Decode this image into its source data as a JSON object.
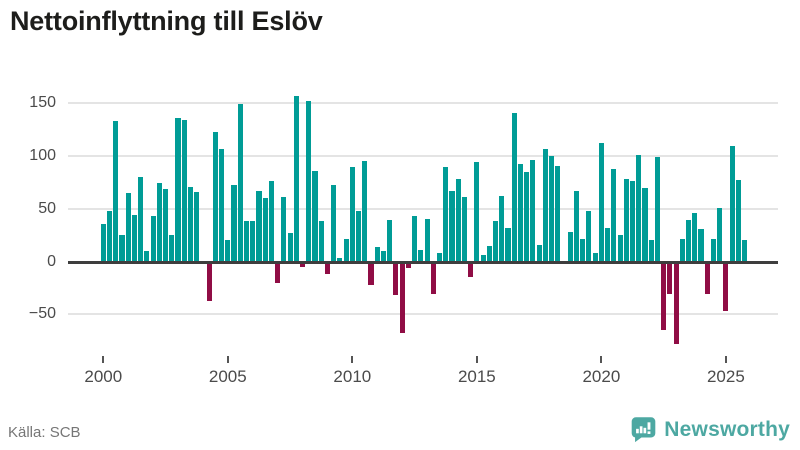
{
  "title": "Nettoinflyttning till Eslöv",
  "source": {
    "label": "Källa: SCB"
  },
  "brand": {
    "name": "Newsworthy",
    "icon": "bar-chart-speech-bubble-icon"
  },
  "colors": {
    "positive_bar": "#009c96",
    "negative_bar": "#900d45",
    "gridline": "#e4e4e4",
    "zero_axis": "#3e3e3e",
    "title_text": "#1d1d1b",
    "tick_text": "#4b4b4b",
    "source_text": "#767676",
    "brand_teal": "#4da8a2"
  },
  "chart_data": {
    "type": "bar",
    "title": "Nettoinflyttning till Eslöv",
    "xlabel": "",
    "ylabel": "",
    "start_period": "2000-Q1",
    "periods_per_year": 4,
    "values": [
      36,
      48,
      133,
      25,
      65,
      44,
      80,
      10,
      43,
      74,
      69,
      25,
      136,
      134,
      71,
      66,
      0,
      -37,
      123,
      107,
      20,
      73,
      149,
      38,
      38,
      67,
      60,
      76,
      -20,
      61,
      27,
      157,
      -5,
      152,
      86,
      38,
      -12,
      73,
      3,
      21,
      90,
      48,
      95,
      -22,
      14,
      10,
      39,
      -32,
      -68,
      -6,
      43,
      11,
      40,
      -31,
      8,
      90,
      67,
      78,
      61,
      -15,
      94,
      6,
      15,
      38,
      62,
      32,
      141,
      92,
      85,
      96,
      16,
      107,
      100,
      91,
      0,
      28,
      67,
      21,
      48,
      8,
      112,
      32,
      88,
      25,
      78,
      76,
      101,
      70,
      20,
      99,
      -65,
      -31,
      -78,
      21,
      39,
      46,
      31,
      -31,
      21,
      51,
      -47,
      110,
      77,
      20
    ],
    "x_ticks": [
      "2000",
      "2005",
      "2010",
      "2015",
      "2020",
      "2025"
    ],
    "y_ticks": [
      150,
      100,
      50,
      0,
      -50
    ],
    "y_tick_labels": [
      "150",
      "100",
      "50",
      "0",
      "-50"
    ],
    "ylim": [
      -93,
      160
    ],
    "grid": "horizontal",
    "legend": "none"
  }
}
